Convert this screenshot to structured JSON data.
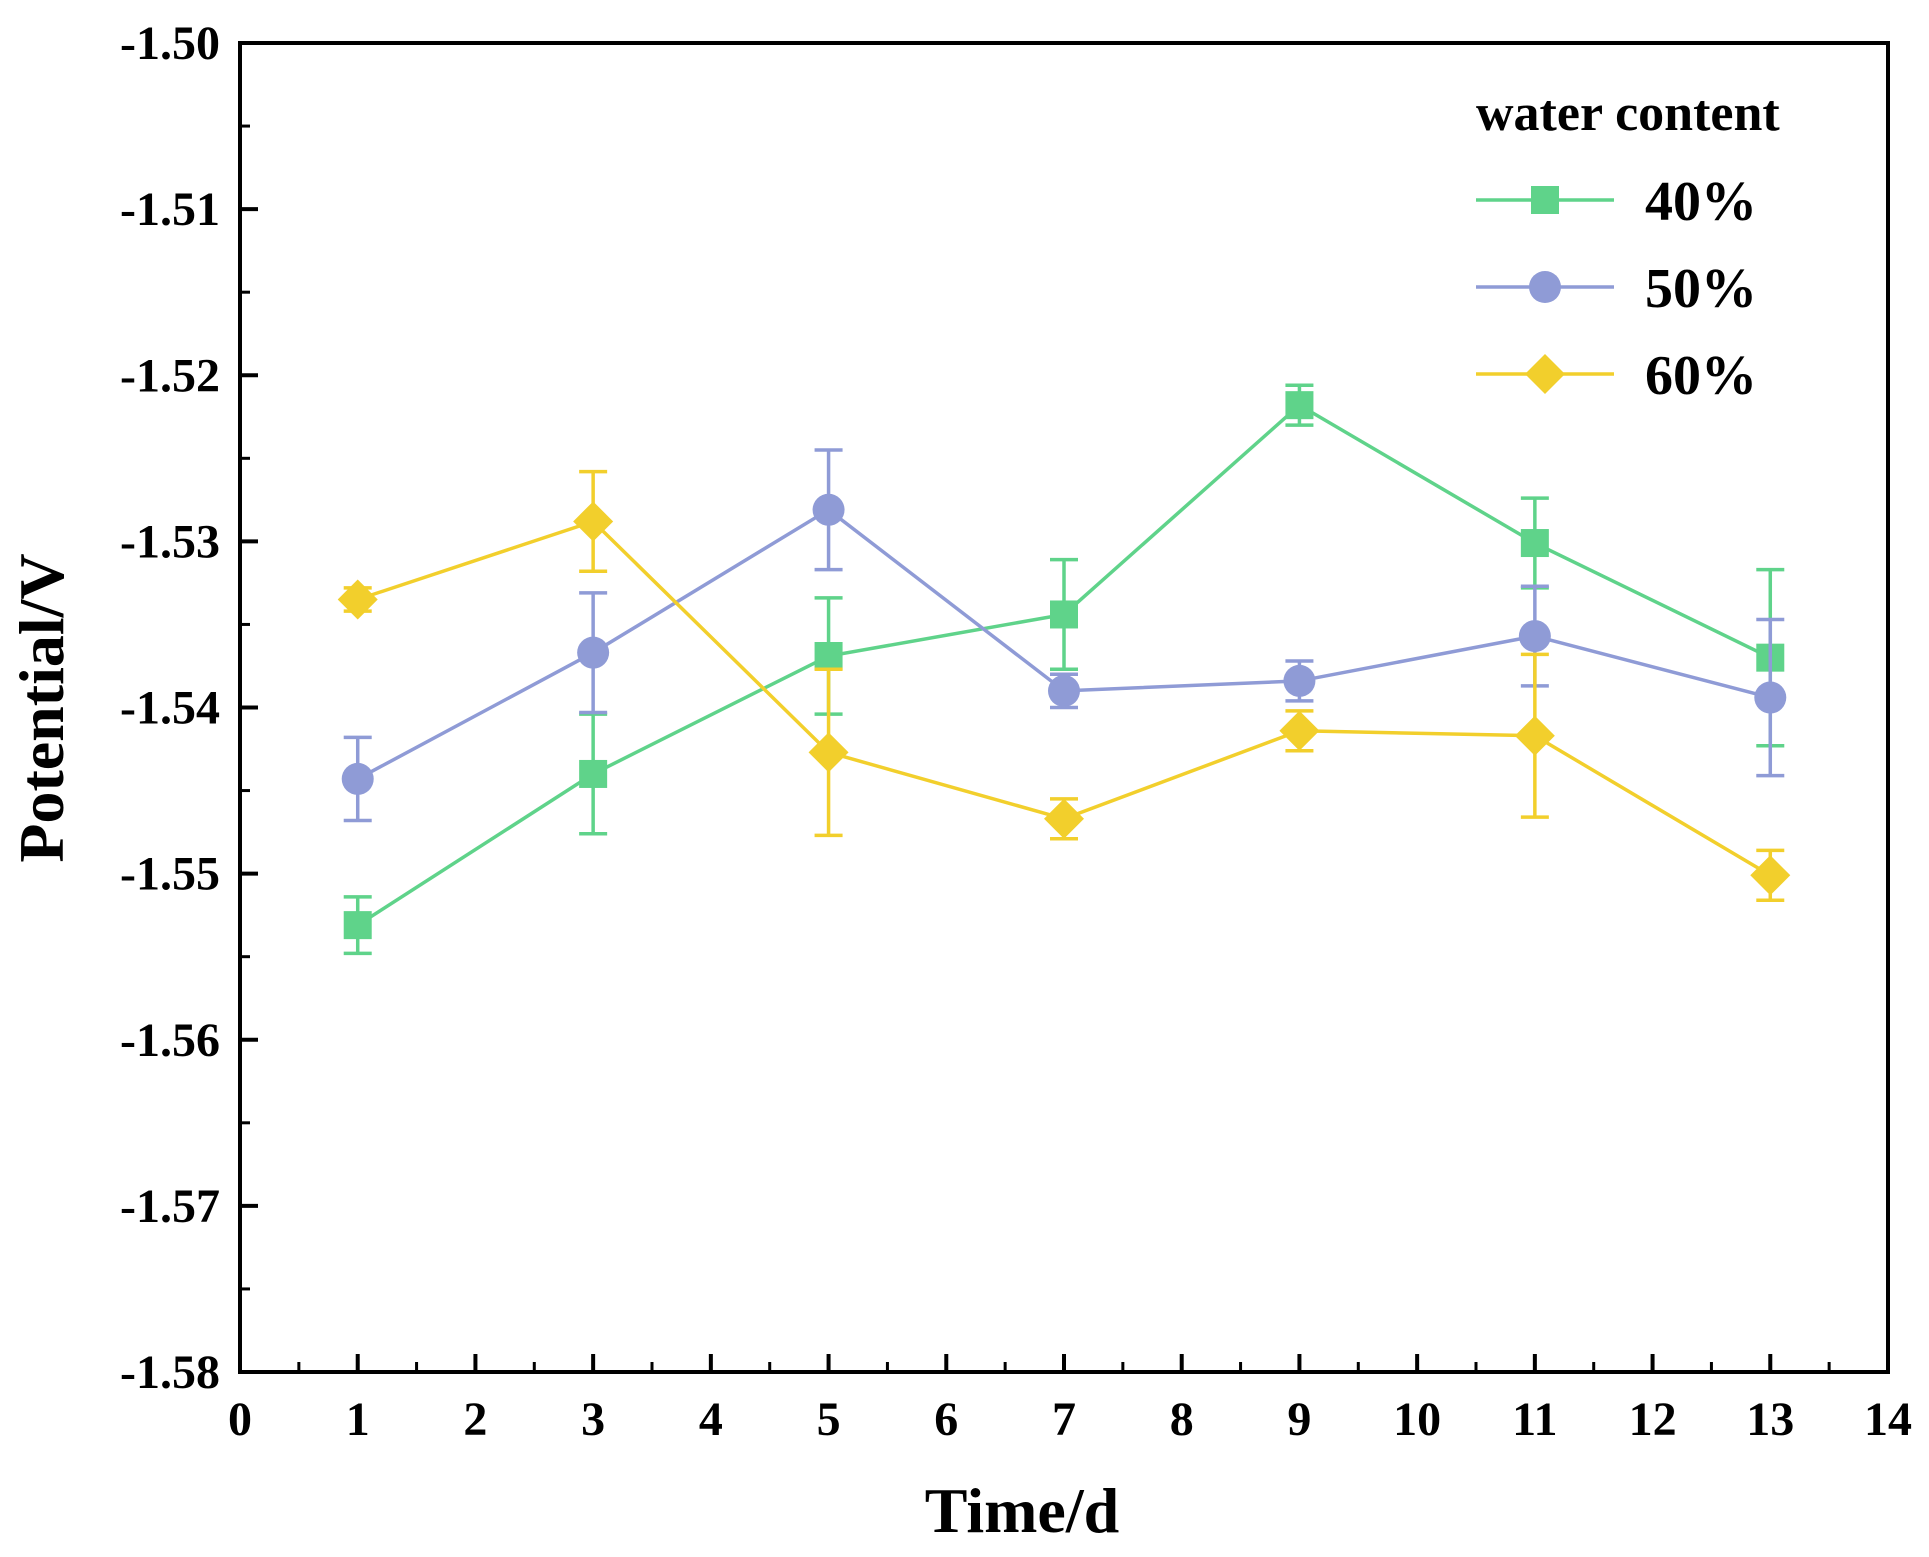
{
  "chart_data": {
    "type": "line",
    "title": "",
    "xlabel": "Time/d",
    "ylabel": "Potential/V",
    "xlim": [
      0,
      14
    ],
    "ylim": [
      -1.58,
      -1.5
    ],
    "xticks": [
      "0",
      "1",
      "2",
      "3",
      "4",
      "5",
      "6",
      "7",
      "8",
      "9",
      "10",
      "11",
      "12",
      "13",
      "14"
    ],
    "yticks": [
      "-1.50",
      "-1.51",
      "-1.52",
      "-1.53",
      "-1.54",
      "-1.55",
      "-1.56",
      "-1.57",
      "-1.58"
    ],
    "grid": false,
    "legend": {
      "title": "water content",
      "placement": "top-right"
    },
    "x": [
      1,
      3,
      5,
      7,
      9,
      11,
      13
    ],
    "series": [
      {
        "name": "40%",
        "marker": "square",
        "color": "#5fd38a",
        "values": [
          -1.5531,
          -1.544,
          -1.5369,
          -1.5344,
          -1.5218,
          -1.5301,
          -1.537
        ],
        "errors": [
          0.0017,
          0.0036,
          0.0035,
          0.0033,
          0.0012,
          0.0027,
          0.0053
        ]
      },
      {
        "name": "50%",
        "marker": "circle",
        "color": "#8f9bd6",
        "values": [
          -1.5443,
          -1.5367,
          -1.5281,
          -1.539,
          -1.5384,
          -1.5357,
          -1.5394
        ],
        "errors": [
          0.0025,
          0.0036,
          0.0036,
          0.001,
          0.0012,
          0.003,
          0.0047
        ]
      },
      {
        "name": "60%",
        "marker": "diamond",
        "color": "#f2cf2c",
        "values": [
          -1.5335,
          -1.5288,
          -1.5427,
          -1.5467,
          -1.5414,
          -1.5417,
          -1.5501
        ],
        "errors": [
          0.0007,
          0.003,
          0.005,
          0.0012,
          0.0012,
          0.0049,
          0.0015
        ]
      }
    ]
  }
}
